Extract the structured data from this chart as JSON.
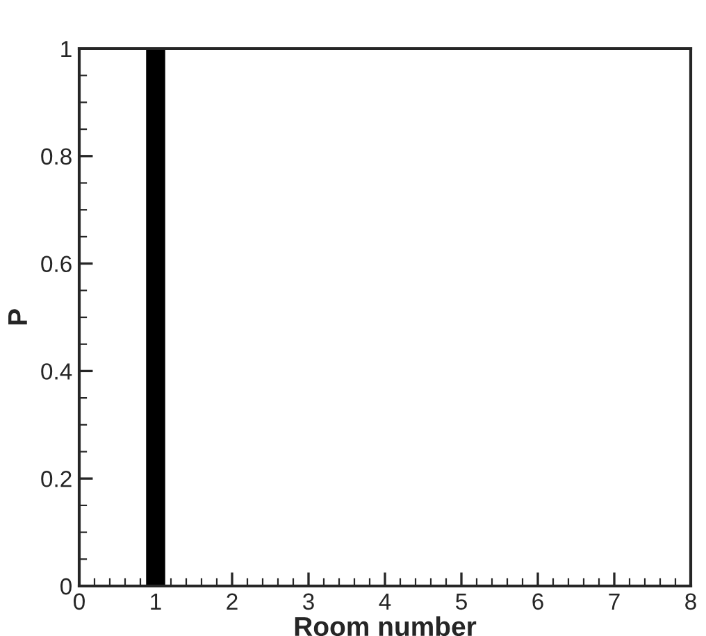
{
  "chart_data": {
    "type": "bar",
    "xlabel": "Room number",
    "ylabel": "P",
    "x": [
      1
    ],
    "series": [
      {
        "color": "#000000",
        "values": [
          1
        ]
      }
    ],
    "xlim": [
      0,
      8
    ],
    "xticks": [
      0,
      1,
      2,
      3,
      4,
      5,
      6,
      7,
      8
    ],
    "ylim": [
      0,
      1
    ],
    "yticks": [
      0,
      0.2,
      0.4,
      0.6,
      0.8,
      1
    ],
    "grid": false,
    "legend": false
  }
}
